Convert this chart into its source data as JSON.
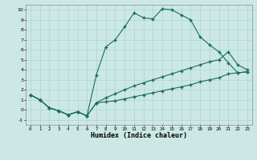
{
  "xlabel": "Humidex (Indice chaleur)",
  "xlim": [
    -0.5,
    23.5
  ],
  "ylim": [
    -1.5,
    10.5
  ],
  "xticks": [
    0,
    1,
    2,
    3,
    4,
    5,
    6,
    7,
    8,
    9,
    10,
    11,
    12,
    13,
    14,
    15,
    16,
    17,
    18,
    19,
    20,
    21,
    22,
    23
  ],
  "yticks": [
    -1,
    0,
    1,
    2,
    3,
    4,
    5,
    6,
    7,
    8,
    9,
    10
  ],
  "bg_color": "#cce8e5",
  "line_color": "#1a6b5e",
  "grid_color": "#b0d8d4",
  "line1_x": [
    0,
    1,
    2,
    3,
    4,
    5,
    6,
    7,
    8,
    9,
    10,
    11,
    12,
    13,
    14,
    15,
    16,
    17,
    18,
    19,
    20,
    21,
    22,
    23
  ],
  "line1_y": [
    1.5,
    1.0,
    0.2,
    -0.1,
    -0.5,
    -0.2,
    -0.6,
    3.5,
    6.3,
    7.0,
    8.3,
    9.7,
    9.2,
    9.1,
    10.1,
    10.0,
    9.5,
    9.0,
    7.3,
    6.5,
    5.8,
    4.7,
    3.7,
    3.8
  ],
  "line2_x": [
    0,
    1,
    2,
    3,
    4,
    5,
    6,
    7,
    8,
    9,
    10,
    11,
    12,
    13,
    14,
    15,
    16,
    17,
    18,
    19,
    20,
    21,
    22,
    23
  ],
  "line2_y": [
    1.5,
    1.0,
    0.2,
    -0.1,
    -0.5,
    -0.2,
    -0.6,
    0.7,
    1.2,
    1.6,
    2.0,
    2.4,
    2.7,
    3.0,
    3.3,
    3.6,
    3.9,
    4.2,
    4.5,
    4.8,
    5.0,
    5.8,
    4.5,
    4.0
  ],
  "line3_x": [
    0,
    1,
    2,
    3,
    4,
    5,
    6,
    7,
    8,
    9,
    10,
    11,
    12,
    13,
    14,
    15,
    16,
    17,
    18,
    19,
    20,
    21,
    22,
    23
  ],
  "line3_y": [
    1.5,
    1.0,
    0.2,
    -0.1,
    -0.5,
    -0.2,
    -0.6,
    0.7,
    0.8,
    0.9,
    1.1,
    1.3,
    1.5,
    1.7,
    1.9,
    2.1,
    2.3,
    2.5,
    2.8,
    3.0,
    3.2,
    3.6,
    3.7,
    3.8
  ]
}
